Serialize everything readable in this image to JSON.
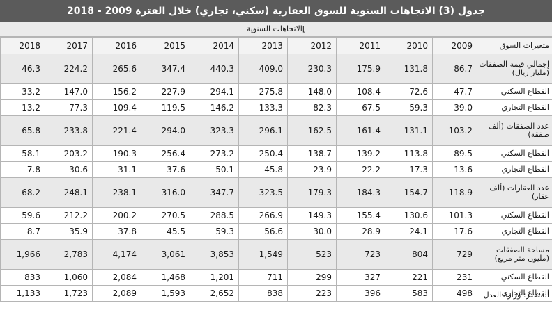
{
  "title": "جدول (3) الاتجاهات السنوية للسوق العقارية (سكني، تجاري) خلال الفترة 2009 - 2018",
  "subtitle": "]الاتجاهات السنوية",
  "header": {
    "label": "متغيرات السوق",
    "years": [
      "2018",
      "2017",
      "2016",
      "2015",
      "2014",
      "2013",
      "2012",
      "2011",
      "2010",
      "2009"
    ]
  },
  "rows": [
    {
      "label": "إجمالي قيمة الصفقات (مليار ريال)",
      "kind": "group",
      "values": [
        "46.3",
        "224.2",
        "265.6",
        "347.4",
        "440.3",
        "409.0",
        "230.3",
        "175.9",
        "131.8",
        "86.7"
      ]
    },
    {
      "label": "القطاع السكني",
      "kind": "sub",
      "values": [
        "33.2",
        "147.0",
        "156.2",
        "227.9",
        "294.1",
        "275.8",
        "148.0",
        "108.4",
        "72.6",
        "47.7"
      ]
    },
    {
      "label": "القطاع التجاري",
      "kind": "sub",
      "values": [
        "13.2",
        "77.3",
        "109.4",
        "119.5",
        "146.2",
        "133.3",
        "82.3",
        "67.5",
        "59.3",
        "39.0"
      ]
    },
    {
      "label": "عدد الصفقات (ألف صفقة)",
      "kind": "group",
      "values": [
        "65.8",
        "233.8",
        "221.4",
        "294.0",
        "323.3",
        "296.1",
        "162.5",
        "161.4",
        "131.1",
        "103.2"
      ]
    },
    {
      "label": "القطاع السكني",
      "kind": "sub",
      "values": [
        "58.1",
        "203.2",
        "190.3",
        "256.4",
        "273.2",
        "250.4",
        "138.7",
        "139.2",
        "113.8",
        "89.5"
      ]
    },
    {
      "label": "القطاع التجاري",
      "kind": "sub",
      "values": [
        "7.8",
        "30.6",
        "31.1",
        "37.6",
        "50.1",
        "45.8",
        "23.9",
        "22.2",
        "17.3",
        "13.6"
      ]
    },
    {
      "label": "عدد العقارات (ألف عقار)",
      "kind": "group",
      "values": [
        "68.2",
        "248.1",
        "238.1",
        "316.0",
        "347.7",
        "323.5",
        "179.3",
        "184.3",
        "154.7",
        "118.9"
      ]
    },
    {
      "label": "القطاع السكني",
      "kind": "sub",
      "values": [
        "59.6",
        "212.2",
        "200.2",
        "270.5",
        "288.5",
        "266.9",
        "149.3",
        "155.4",
        "130.6",
        "101.3"
      ]
    },
    {
      "label": "القطاع التجاري",
      "kind": "sub",
      "values": [
        "8.7",
        "35.9",
        "37.8",
        "45.5",
        "59.3",
        "56.6",
        "30.0",
        "28.9",
        "24.1",
        "17.6"
      ]
    },
    {
      "label": "مساحة الصفقات (مليون متر مربع)",
      "kind": "group",
      "values": [
        "1,966",
        "2,783",
        "4,174",
        "3,061",
        "3,853",
        "1,549",
        "523",
        "723",
        "804",
        "729"
      ]
    },
    {
      "label": "القطاع السكني",
      "kind": "sub",
      "values": [
        "833",
        "1,060",
        "2,084",
        "1,468",
        "1,201",
        "711",
        "299",
        "327",
        "221",
        "231"
      ]
    },
    {
      "label": "القطاع التجاري",
      "kind": "sub",
      "values": [
        "1,133",
        "1,723",
        "2,089",
        "1,593",
        "2,652",
        "838",
        "223",
        "396",
        "583",
        "498"
      ]
    }
  ],
  "source": "المصدر: وزارة العدل"
}
